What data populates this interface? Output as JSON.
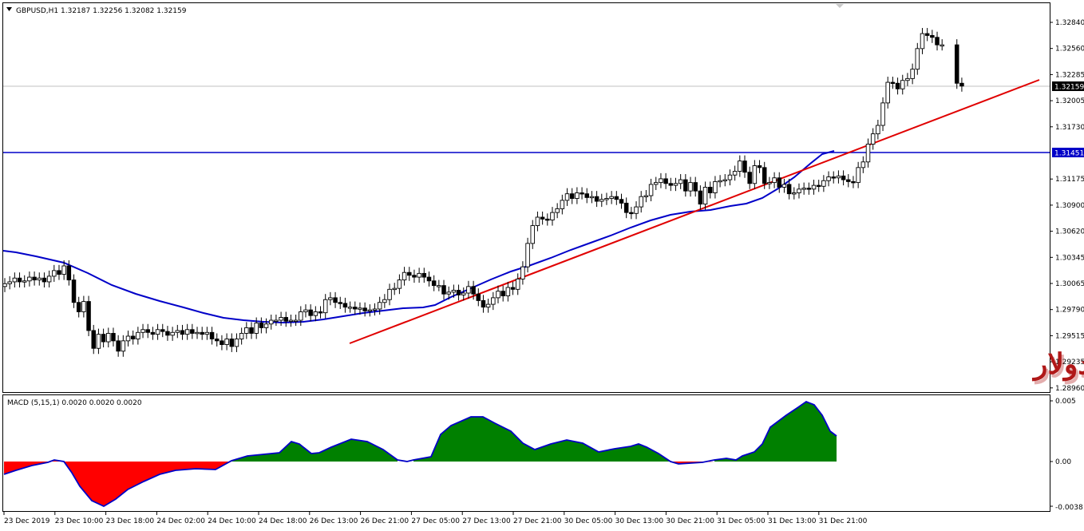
{
  "main_chart": {
    "symbol_header": "GBPUSD,H1  1.32187 1.32256 1.32082 1.32159",
    "price_ticks": [
      "1.32840",
      "1.32560",
      "1.32285",
      "1.32005",
      "1.31730",
      "1.31175",
      "1.30900",
      "1.30620",
      "1.30345",
      "1.30065",
      "1.29790",
      "1.29515",
      "1.29235",
      "1.28960"
    ],
    "price_tag_labels": {
      "current": "1.32159",
      "hline": "1.31451"
    },
    "overlay_text": "الباوند دولار",
    "colors": {
      "ma_line": "#0000c8",
      "hline": "#0000c8",
      "trendline": "#e00000",
      "candle": "#000000",
      "current_tag": "#000000",
      "hline_tag": "#0000c8"
    }
  },
  "macd_panel": {
    "label": "MACD (5,15,1) 0.0020 0.0020 0.0020",
    "ticks": [
      "0.005",
      "0.00",
      "-0.0038"
    ],
    "colors": {
      "positive": "#008000",
      "negative": "#ff0000",
      "signal": "#0000c8"
    }
  },
  "time_axis": {
    "labels": [
      "23 Dec 2019",
      "23 Dec 10:00",
      "23 Dec 18:00",
      "24 Dec 02:00",
      "24 Dec 10:00",
      "24 Dec 18:00",
      "26 Dec 13:00",
      "26 Dec 21:00",
      "27 Dec 05:00",
      "27 Dec 13:00",
      "27 Dec 21:00",
      "30 Dec 05:00",
      "30 Dec 13:00",
      "30 Dec 21:00",
      "31 Dec 05:00",
      "31 Dec 13:00",
      "31 Dec 21:00"
    ]
  },
  "chart_data": {
    "type": "candlestick",
    "symbol": "GBPUSD",
    "timeframe": "H1",
    "price_axis_range": [
      1.2883,
      1.3297
    ],
    "current_price": 1.32159,
    "horizontal_level": 1.31451,
    "ohlc_header": {
      "open": 1.32187,
      "high": 1.32256,
      "low": 1.32082,
      "close": 1.32159
    },
    "macd": {
      "params": [
        5,
        15,
        1
      ],
      "range": [
        -0.0038,
        0.005
      ]
    },
    "closes": [
      1.3005,
      1.3007,
      1.3011,
      1.3007,
      1.3008,
      1.3012,
      1.3009,
      1.3011,
      1.3007,
      1.3013,
      1.3019,
      1.3015,
      1.3024,
      1.3009,
      1.2985,
      1.2975,
      1.2986,
      1.2955,
      1.2936,
      1.2951,
      1.2943,
      1.2952,
      1.2944,
      1.2933,
      1.2944,
      1.2949,
      1.2946,
      1.2953,
      1.2956,
      1.2953,
      1.2951,
      1.2956,
      1.2954,
      1.295,
      1.2953,
      1.2955,
      1.2951,
      1.2956,
      1.2952,
      1.2953,
      1.2951,
      1.2953,
      1.2946,
      1.2944,
      1.294,
      1.2946,
      1.2938,
      1.2946,
      1.2952,
      1.2958,
      1.2952,
      1.2963,
      1.2958,
      1.2962,
      1.2966,
      1.2966,
      1.2969,
      1.2965,
      1.2966,
      1.2966,
      1.2975,
      1.2977,
      1.2971,
      1.2975,
      1.2974,
      1.2988,
      1.299,
      1.2985,
      1.2984,
      1.298,
      1.298,
      1.2978,
      1.2979,
      1.2976,
      1.2977,
      1.2978,
      1.2985,
      1.2988,
      1.2999,
      1.3,
      1.3009,
      1.3017,
      1.3014,
      1.3012,
      1.3016,
      1.3012,
      1.3008,
      1.3003,
      1.3003,
      1.2994,
      1.2996,
      1.2998,
      1.2993,
      1.2995,
      1.3002,
      1.2994,
      1.2987,
      1.298,
      1.2983,
      1.299,
      1.2997,
      1.2992,
      1.3001,
      1.2999,
      1.301,
      1.3023,
      1.3048,
      1.3067,
      1.3076,
      1.3074,
      1.3073,
      1.3081,
      1.3085,
      1.3094,
      1.3101,
      1.3096,
      1.3102,
      1.3101,
      1.3097,
      1.3098,
      1.3093,
      1.3095,
      1.3096,
      1.3098,
      1.3095,
      1.3091,
      1.3081,
      1.308,
      1.3087,
      1.3098,
      1.3099,
      1.3111,
      1.3113,
      1.3117,
      1.3112,
      1.311,
      1.3112,
      1.3116,
      1.3104,
      1.3113,
      1.3104,
      1.309,
      1.3108,
      1.3102,
      1.3114,
      1.3115,
      1.3116,
      1.3121,
      1.3125,
      1.3136,
      1.3124,
      1.3112,
      1.3131,
      1.3129,
      1.3112,
      1.3113,
      1.3118,
      1.3108,
      1.3111,
      1.3101,
      1.3102,
      1.3106,
      1.3107,
      1.3106,
      1.311,
      1.3109,
      1.3115,
      1.3119,
      1.3118,
      1.312,
      1.3116,
      1.3114,
      1.3113,
      1.3129,
      1.3135,
      1.3154,
      1.3165,
      1.3174,
      1.3198,
      1.322,
      1.3219,
      1.3213,
      1.3222,
      1.3224,
      1.3234,
      1.3256,
      1.3272,
      1.327,
      1.3268,
      1.326,
      1.326,
      null,
      null,
      1.3219,
      1.3216
    ]
  }
}
